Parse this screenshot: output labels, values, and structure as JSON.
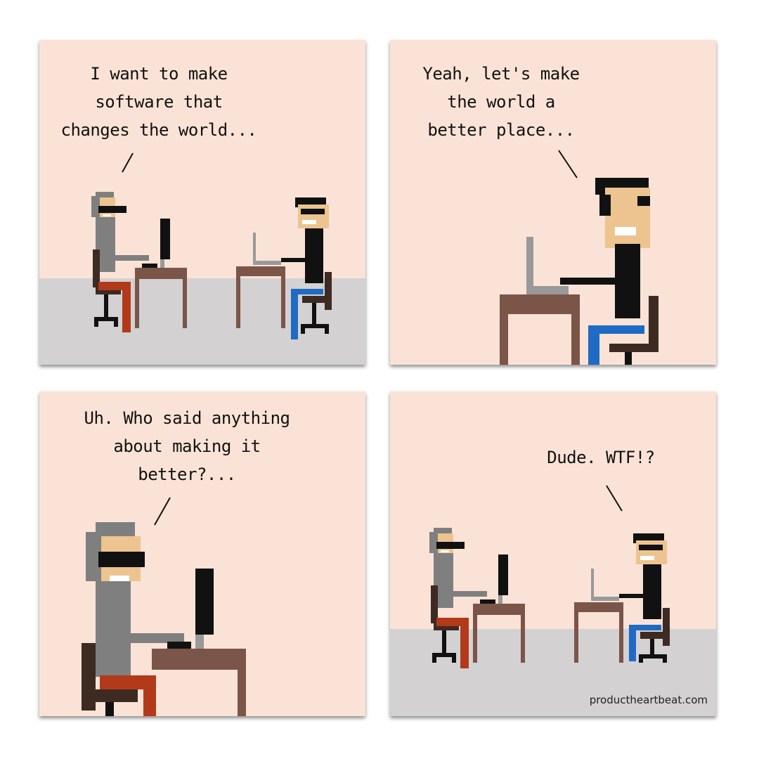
{
  "panels": [
    {
      "speech": "I want to make\nsoftware that\nchanges the world..."
    },
    {
      "speech": "Yeah, let's make\nthe world a\nbetter place..."
    },
    {
      "speech": "Uh. Who said anything\nabout making it\nbetter?..."
    },
    {
      "speech": "Dude. WTF!?"
    }
  ],
  "watermark": "productheartbeat.com",
  "colors": {
    "panel_bg": "#fae3d6",
    "floor": "#d3d1d2",
    "desk": "#7a5548",
    "hair_gray": "#7f7f7f",
    "skin": "#edc48f",
    "red_pants": "#b23a1a",
    "blue_pants": "#1f6bc4"
  }
}
